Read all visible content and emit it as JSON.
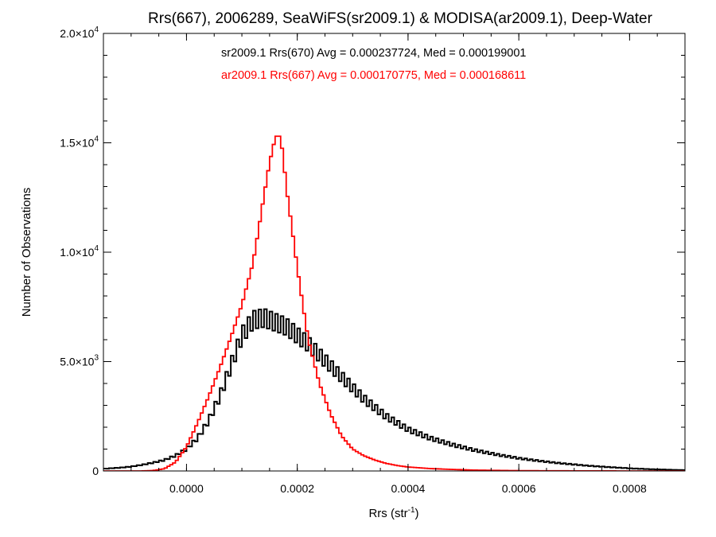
{
  "chart_data": {
    "type": "line",
    "title": "Rrs(667), 2006289, SeaWiFS(sr2009.1) & MODISA(ar2009.1), Deep-Water",
    "xlabel": "Rrs (str",
    "xlabel_sup": "-1",
    "xlabel_end": ")",
    "ylabel": "Number of Observations",
    "xlim": [
      -0.00015,
      0.0009
    ],
    "ylim": [
      0,
      20000
    ],
    "x_ticks": [
      {
        "value": 0.0,
        "label": "0.0000"
      },
      {
        "value": 0.0002,
        "label": "0.0002"
      },
      {
        "value": 0.0004,
        "label": "0.0004"
      },
      {
        "value": 0.0006,
        "label": "0.0006"
      },
      {
        "value": 0.0008,
        "label": "0.0008"
      }
    ],
    "y_ticks": [
      {
        "value": 0,
        "mant": "0",
        "exp": ""
      },
      {
        "value": 5000,
        "mant": "5.0×10",
        "exp": "3"
      },
      {
        "value": 10000,
        "mant": "1.0×10",
        "exp": "4"
      },
      {
        "value": 15000,
        "mant": "1.5×10",
        "exp": "4"
      },
      {
        "value": 20000,
        "mant": "2.0×10",
        "exp": "4"
      }
    ],
    "legend": [
      {
        "text": "sr2009.1 Rrs(670) Avg = 0.000237724, Med = 0.000199001",
        "color": "#000000"
      },
      {
        "text": "ar2009.1 Rrs(667) Avg = 0.000170775, Med = 0.000168611",
        "color": "#ff0000"
      }
    ],
    "series": [
      {
        "color": "#000000",
        "x": [
          -0.00015,
          -0.00012,
          -0.0001,
          -8e-05,
          -6e-05,
          -4e-05,
          -2e-05,
          0.0,
          2e-05,
          4e-05,
          6e-05,
          8e-05,
          0.0001,
          0.00012,
          0.00014,
          0.00016,
          0.00018,
          0.0002,
          0.00022,
          0.00024,
          0.00026,
          0.00028,
          0.0003,
          0.00032,
          0.00034,
          0.00036,
          0.00038,
          0.0004,
          0.00044,
          0.00048,
          0.00052,
          0.00056,
          0.0006,
          0.00064,
          0.00068,
          0.00072,
          0.00076,
          0.0008,
          0.00084,
          0.00088,
          0.0009
        ],
        "values": [
          100,
          150,
          200,
          280,
          380,
          500,
          700,
          1000,
          1500,
          2300,
          3400,
          4800,
          6200,
          6900,
          7000,
          6800,
          6600,
          6200,
          5800,
          5300,
          4800,
          4300,
          3800,
          3300,
          2900,
          2500,
          2200,
          1900,
          1500,
          1200,
          950,
          750,
          580,
          450,
          340,
          250,
          180,
          120,
          80,
          50,
          40
        ]
      },
      {
        "color": "#ff0000",
        "x": [
          -0.00015,
          -0.0001,
          -8e-05,
          -6e-05,
          -4e-05,
          -2e-05,
          0.0,
          2e-05,
          4e-05,
          6e-05,
          8e-05,
          0.0001,
          0.00012,
          0.00013,
          0.00014,
          0.00015,
          0.00016,
          0.000165,
          0.00017,
          0.000175,
          0.00018,
          0.00019,
          0.0002,
          0.00021,
          0.00022,
          0.00024,
          0.00026,
          0.00028,
          0.0003,
          0.00032,
          0.00034,
          0.00036,
          0.00038,
          0.0004,
          0.00044,
          0.00048,
          0.00052,
          0.00056,
          0.0006,
          0.00064,
          0.0007,
          0.0008,
          0.0009
        ],
        "values": [
          0,
          0,
          0,
          20,
          100,
          400,
          1100,
          2200,
          3400,
          4700,
          6100,
          7600,
          9500,
          11000,
          12600,
          14100,
          15200,
          15400,
          15200,
          14300,
          13000,
          11200,
          9300,
          7600,
          6000,
          4000,
          2600,
          1600,
          1000,
          700,
          500,
          350,
          250,
          180,
          110,
          70,
          40,
          25,
          15,
          10,
          5,
          0,
          0
        ]
      }
    ]
  }
}
